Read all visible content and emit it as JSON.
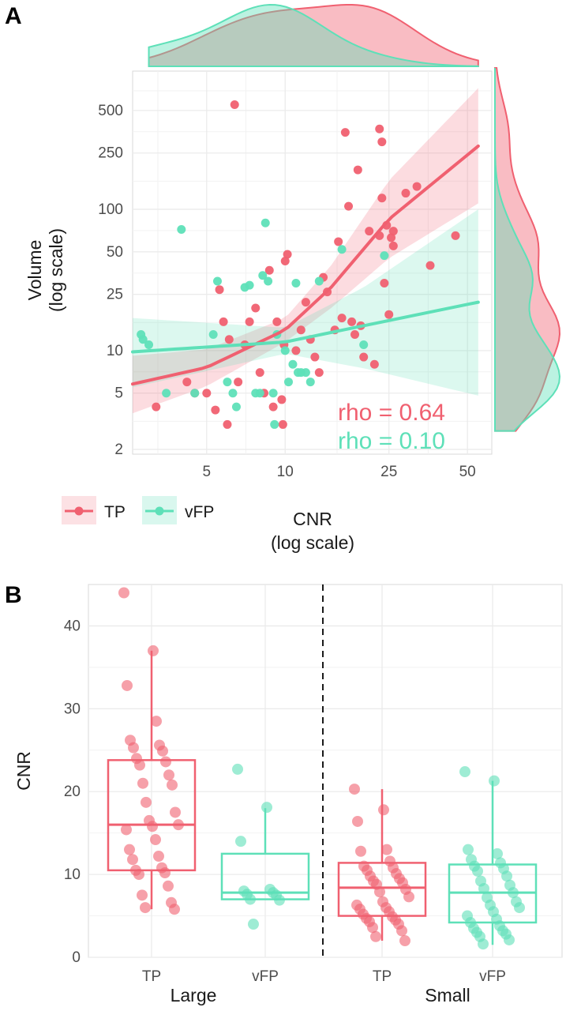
{
  "colors": {
    "tp": "#f06070",
    "vfp": "#5ee0b8",
    "panel_bg": "#ffffff",
    "grid": "#ebebeb"
  },
  "chart_data": [
    {
      "panel": "A",
      "type": "scatter",
      "x_scale": "log",
      "y_scale": "log",
      "xlabel": "CNR",
      "xlabel_sub": "(log scale)",
      "ylabel": "Volume",
      "ylabel_sub": "(log scale)",
      "xlim": [
        2.6,
        62
      ],
      "ylim": [
        1.85,
        950
      ],
      "x_ticks": [
        {
          "v": 5,
          "label": "5"
        },
        {
          "v": 10,
          "label": "10"
        },
        {
          "v": 25,
          "label": "25"
        },
        {
          "v": 50,
          "label": "50"
        }
      ],
      "y_ticks": [
        {
          "v": 2,
          "label": "2"
        },
        {
          "v": 5,
          "label": "5"
        },
        {
          "v": 10,
          "label": "10"
        },
        {
          "v": 25,
          "label": "25"
        },
        {
          "v": 50,
          "label": "50"
        },
        {
          "v": 100,
          "label": "100"
        },
        {
          "v": 250,
          "label": "250"
        },
        {
          "v": 500,
          "label": "500"
        }
      ],
      "grid": true,
      "legend_position": "bottom-left",
      "series": [
        {
          "name": "TP",
          "color_key": "tp",
          "points": [
            [
              3.2,
              4
            ],
            [
              4.2,
              6
            ],
            [
              4.5,
              5
            ],
            [
              5,
              5
            ],
            [
              5.4,
              3.8
            ],
            [
              5.6,
              27
            ],
            [
              5.8,
              16
            ],
            [
              6,
              3
            ],
            [
              6.1,
              12
            ],
            [
              6.4,
              550
            ],
            [
              6.6,
              6
            ],
            [
              7,
              11
            ],
            [
              7.3,
              16
            ],
            [
              7.7,
              20
            ],
            [
              8,
              7
            ],
            [
              8.3,
              5
            ],
            [
              8.7,
              37
            ],
            [
              9,
              4
            ],
            [
              9.3,
              16
            ],
            [
              9.7,
              4.5
            ],
            [
              9.8,
              3
            ],
            [
              9.9,
              11
            ],
            [
              10,
              43
            ],
            [
              10.2,
              48
            ],
            [
              11,
              10
            ],
            [
              11.5,
              14
            ],
            [
              12,
              22
            ],
            [
              12.5,
              12
            ],
            [
              13,
              9
            ],
            [
              13.5,
              7
            ],
            [
              14,
              33
            ],
            [
              14.5,
              26
            ],
            [
              15.5,
              14
            ],
            [
              16,
              59
            ],
            [
              16.5,
              17
            ],
            [
              17,
              350
            ],
            [
              17.5,
              105
            ],
            [
              18,
              16
            ],
            [
              18.5,
              13
            ],
            [
              19,
              190
            ],
            [
              19.5,
              15
            ],
            [
              20,
              9
            ],
            [
              21,
              70
            ],
            [
              22,
              8
            ],
            [
              23,
              370
            ],
            [
              23,
              65
            ],
            [
              23.5,
              300
            ],
            [
              23.5,
              120
            ],
            [
              24,
              30
            ],
            [
              24.5,
              77
            ],
            [
              25,
              18
            ],
            [
              25.5,
              63
            ],
            [
              26,
              70
            ],
            [
              26,
              55
            ],
            [
              29,
              130
            ],
            [
              32,
              145
            ],
            [
              36,
              40
            ],
            [
              45,
              65
            ]
          ]
        },
        {
          "name": "vFP",
          "color_key": "vfp",
          "points": [
            [
              2.8,
              13
            ],
            [
              2.85,
              12
            ],
            [
              3,
              11
            ],
            [
              3.5,
              5
            ],
            [
              4,
              72
            ],
            [
              4.5,
              5
            ],
            [
              5.3,
              13
            ],
            [
              5.5,
              31
            ],
            [
              6,
              6
            ],
            [
              6.3,
              5
            ],
            [
              6.5,
              4
            ],
            [
              7,
              28
            ],
            [
              7.3,
              29
            ],
            [
              7.7,
              5
            ],
            [
              8,
              5
            ],
            [
              8.2,
              34
            ],
            [
              8.4,
              80
            ],
            [
              8.6,
              31
            ],
            [
              9,
              5
            ],
            [
              9.1,
              3
            ],
            [
              9.3,
              13
            ],
            [
              10,
              10
            ],
            [
              10.3,
              6
            ],
            [
              10.7,
              8
            ],
            [
              11,
              30
            ],
            [
              11.2,
              7
            ],
            [
              11.5,
              7
            ],
            [
              12,
              7
            ],
            [
              12.5,
              6
            ],
            [
              13.5,
              31
            ],
            [
              16.5,
              52
            ],
            [
              20,
              11
            ],
            [
              24,
              47
            ]
          ]
        }
      ],
      "fits": [
        {
          "series": "TP",
          "line": [
            [
              2.6,
              5.8
            ],
            [
              5,
              7.6
            ],
            [
              10,
              14
            ],
            [
              15,
              28
            ],
            [
              25,
              85
            ],
            [
              55,
              280
            ]
          ],
          "band_upper": [
            [
              2.6,
              9.2
            ],
            [
              5,
              10.2
            ],
            [
              10,
              17
            ],
            [
              15,
              40
            ],
            [
              25,
              160
            ],
            [
              55,
              720
            ]
          ],
          "band_lower": [
            [
              2.6,
              3.6
            ],
            [
              5,
              5.6
            ],
            [
              10,
              11.5
            ],
            [
              15,
              20
            ],
            [
              25,
              45
            ],
            [
              55,
              110
            ]
          ]
        },
        {
          "series": "vFP",
          "line": [
            [
              2.6,
              9.8
            ],
            [
              10,
              11.5
            ],
            [
              20,
              15
            ],
            [
              55,
              22
            ]
          ],
          "band_upper": [
            [
              2.6,
              17
            ],
            [
              10,
              14.5
            ],
            [
              20,
              28
            ],
            [
              55,
              100
            ]
          ],
          "band_lower": [
            [
              2.6,
              5.5
            ],
            [
              10,
              9.5
            ],
            [
              20,
              7.5
            ],
            [
              55,
              4.8
            ]
          ]
        }
      ],
      "annotations": [
        {
          "text": "rho = 0.64",
          "color_key": "tp"
        },
        {
          "text": "rho = 0.10",
          "color_key": "vfp"
        }
      ]
    },
    {
      "panel": "B",
      "type": "box",
      "ylabel": "CNR",
      "ylim": [
        0,
        45
      ],
      "y_ticks": [
        0,
        10,
        20,
        30,
        40
      ],
      "categories": [
        "TP",
        "vFP",
        "TP",
        "vFP"
      ],
      "groups": [
        "Large",
        "Small"
      ],
      "divider_after_index": 1,
      "grid": true,
      "boxes": [
        {
          "group": "Large",
          "category": "TP",
          "color_key": "tp",
          "whisker_low": 5.8,
          "q1": 10.5,
          "median": 16,
          "q3": 23.8,
          "whisker_high": 37,
          "points": [
            44,
            37,
            32.8,
            28.5,
            26.2,
            25.6,
            25.3,
            24.9,
            24,
            23.6,
            23.2,
            22,
            21,
            20.8,
            18.7,
            17.5,
            16.5,
            16,
            15.8,
            15.4,
            14.2,
            13,
            12.2,
            11.8,
            10.8,
            10.5,
            10.2,
            10,
            8.6,
            7.5,
            6.6,
            6,
            5.8
          ]
        },
        {
          "group": "Large",
          "category": "vFP",
          "color_key": "vfp",
          "whisker_low": 7,
          "q1": 7,
          "median": 7.8,
          "q3": 12.5,
          "whisker_high": 18,
          "points": [
            22.7,
            18.1,
            14,
            8.2,
            8,
            7.8,
            7.6,
            7.5,
            7,
            6.9,
            4
          ]
        },
        {
          "group": "Small",
          "category": "TP",
          "color_key": "tp",
          "whisker_low": 2,
          "q1": 5,
          "median": 8.4,
          "q3": 11.4,
          "whisker_high": 20.3,
          "points": [
            20.3,
            17.8,
            16.4,
            13,
            12.8,
            11.6,
            11,
            10.8,
            10.5,
            10.1,
            9.8,
            9.5,
            9.2,
            9,
            8.8,
            8.2,
            7.9,
            7.3,
            6.7,
            6.3,
            6,
            5.8,
            5.5,
            5.2,
            4.9,
            4.7,
            4.5,
            4.3,
            4,
            3.6,
            3.2,
            2.5,
            2
          ]
        },
        {
          "group": "Small",
          "category": "vFP",
          "color_key": "vfp",
          "whisker_low": 1.5,
          "q1": 4.2,
          "median": 7.8,
          "q3": 11.2,
          "whisker_high": 21.3,
          "points": [
            22.4,
            21.3,
            13,
            12.5,
            11.8,
            11.4,
            11,
            10.7,
            10.4,
            9.8,
            9.2,
            8.7,
            8.3,
            7.8,
            7.2,
            6.7,
            6.3,
            6,
            5.5,
            5,
            4.6,
            4.2,
            3.8,
            3.5,
            3.2,
            3,
            2.8,
            2.5,
            2.1,
            1.6
          ]
        }
      ]
    }
  ],
  "figure": {
    "panel_a_label": "A",
    "panel_b_label": "B",
    "legend": [
      {
        "label": "TP",
        "color_key": "tp"
      },
      {
        "label": "vFP",
        "color_key": "vfp"
      }
    ]
  }
}
